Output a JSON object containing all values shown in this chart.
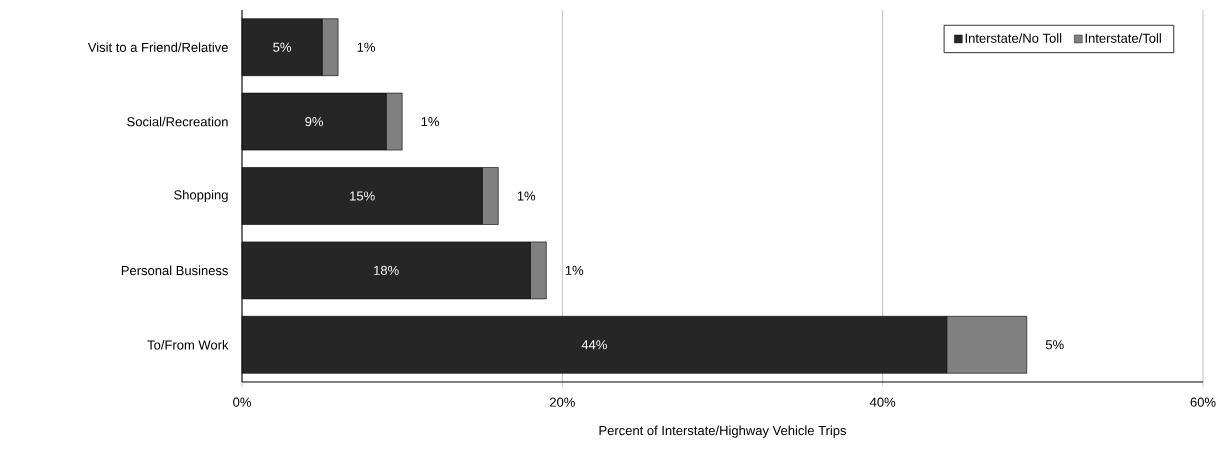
{
  "chart_data": {
    "type": "bar",
    "orientation": "horizontal",
    "stacked": true,
    "categories": [
      "Visit to a Friend/Relative",
      "Social/Recreation",
      "Shopping",
      "Personal Business",
      "To/From Work"
    ],
    "series": [
      {
        "name": "Interstate/No Toll",
        "color": "#262626",
        "values": [
          5,
          9,
          15,
          18,
          44
        ],
        "value_labels": [
          "5%",
          "9%",
          "15%",
          "18%",
          "44%"
        ]
      },
      {
        "name": "Interstate/Toll",
        "color": "#808080",
        "values": [
          1,
          1,
          1,
          1,
          5
        ],
        "value_labels": [
          "1%",
          "1%",
          "1%",
          "1%",
          "5%"
        ]
      }
    ],
    "xlabel": "Percent of Interstate/Highway Vehicle Trips",
    "xlim": [
      0,
      60
    ],
    "xticks": [
      {
        "value": 0,
        "label": "0%"
      },
      {
        "value": 20,
        "label": "20%"
      },
      {
        "value": 40,
        "label": "40%"
      },
      {
        "value": 60,
        "label": "60%"
      }
    ],
    "grid": "x",
    "legend": "top right"
  }
}
